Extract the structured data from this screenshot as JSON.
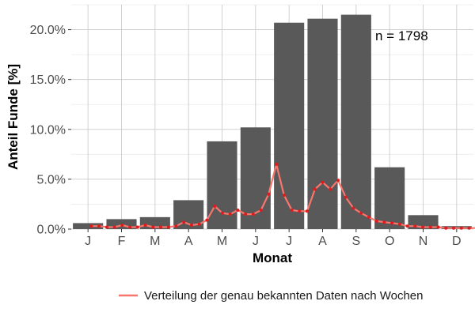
{
  "chart_data": {
    "type": "bar",
    "xlabel": "Monat",
    "ylabel": "Anteil Funde [%]",
    "ylim": [
      0,
      0.225
    ],
    "y_ticks": [
      "0.0%",
      "5.0%",
      "10.0%",
      "15.0%",
      "20.0%"
    ],
    "y_tick_values": [
      0,
      0.05,
      0.1,
      0.15,
      0.2
    ],
    "grid": true,
    "annotation": "n = 1798",
    "categories": [
      "J",
      "F",
      "M",
      "A",
      "M",
      "J",
      "J",
      "A",
      "S",
      "O",
      "N",
      "D"
    ],
    "series": [
      {
        "type": "bar",
        "values": [
          0.006,
          0.01,
          0.012,
          0.029,
          0.088,
          0.102,
          0.207,
          0.211,
          0.215,
          0.062,
          0.014,
          0.003
        ]
      },
      {
        "type": "line",
        "name": "Verteilung der genau bekannten Daten nach Wochen",
        "x_unit": "month",
        "x": [
          0.1,
          0.33,
          0.56,
          0.79,
          1.02,
          1.25,
          1.48,
          1.71,
          1.94,
          2.17,
          2.4,
          2.63,
          2.86,
          3.09,
          3.32,
          3.55,
          3.78,
          4.01,
          4.24,
          4.47,
          4.7,
          4.93,
          5.16,
          5.39,
          5.62,
          5.85,
          6.08,
          6.31,
          6.54,
          6.77,
          7.0,
          7.23,
          7.46,
          7.69,
          7.92,
          8.15,
          8.38,
          8.61,
          8.84,
          9.07,
          9.3,
          9.53,
          9.76,
          9.99,
          10.22,
          10.45,
          10.68,
          10.91,
          11.14,
          11.37,
          11.6,
          11.83
        ],
        "values": [
          0.003,
          0.003,
          0.002,
          0.002,
          0.004,
          0.002,
          0.002,
          0.004,
          0.002,
          0.002,
          0.002,
          0.003,
          0.007,
          0.004,
          0.005,
          0.009,
          0.023,
          0.016,
          0.015,
          0.019,
          0.015,
          0.015,
          0.019,
          0.035,
          0.065,
          0.034,
          0.019,
          0.018,
          0.018,
          0.04,
          0.047,
          0.04,
          0.049,
          0.032,
          0.021,
          0.016,
          0.012,
          0.008,
          0.007,
          0.006,
          0.005,
          0.003,
          0.003,
          0.002,
          0.002,
          0.002,
          0.001,
          0.001,
          0.001,
          0.001,
          0.001,
          0.001
        ]
      }
    ],
    "colors": {
      "bar": "#595959",
      "line": "#f8766d",
      "points": "#e31a1c",
      "grid": "#d0d0d0",
      "panel_bg": "#ffffff"
    },
    "legend_position": "bottom"
  }
}
